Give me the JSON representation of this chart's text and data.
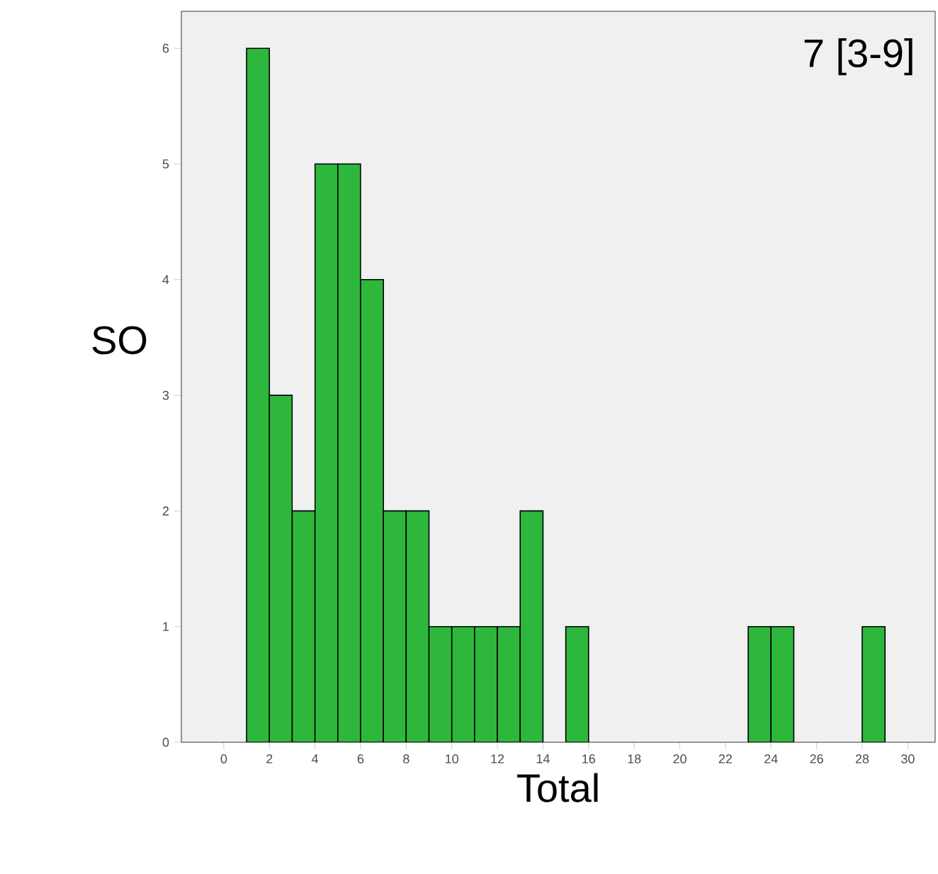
{
  "chart_data": {
    "type": "histogram",
    "bins": [
      1,
      2,
      3,
      4,
      5,
      6,
      7,
      8,
      9,
      10,
      11,
      12,
      13,
      14,
      15,
      16,
      17,
      18,
      19,
      20,
      21,
      22,
      23,
      24,
      25,
      26,
      27,
      28,
      29
    ],
    "values": [
      6,
      3,
      2,
      5,
      5,
      4,
      2,
      2,
      1,
      1,
      1,
      1,
      2,
      0,
      1,
      0,
      0,
      0,
      0,
      0,
      0,
      0,
      1,
      1,
      0,
      0,
      0,
      1
    ],
    "color": "#2db83d",
    "xlabel": "Total",
    "ylabel": "SO",
    "annotations": [
      "7 [3-9]"
    ],
    "xlim": [
      -1.86,
      31.2
    ],
    "ylim": [
      0,
      6.32
    ],
    "xticks": [
      0,
      2,
      4,
      6,
      8,
      10,
      12,
      14,
      16,
      18,
      20,
      22,
      24,
      26,
      28,
      30
    ],
    "yticks": [
      0,
      1,
      2,
      3,
      4,
      5,
      6
    ],
    "grid": false
  }
}
